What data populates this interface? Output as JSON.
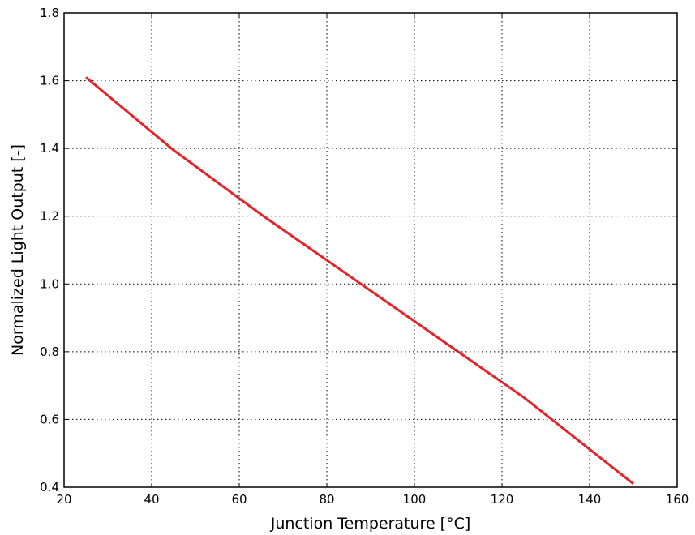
{
  "chart_data": {
    "type": "line",
    "title": "",
    "xlabel": "Junction Temperature [°C]",
    "ylabel": "Normalized Light Output [-]",
    "xlim": [
      20,
      160
    ],
    "ylim": [
      0.4,
      1.8
    ],
    "xticks": [
      20,
      40,
      60,
      80,
      100,
      120,
      140,
      160
    ],
    "yticks": [
      0.4,
      0.6,
      0.8,
      1.0,
      1.2,
      1.4,
      1.6,
      1.8
    ],
    "xtick_labels": [
      "20",
      "40",
      "60",
      "80",
      "100",
      "120",
      "140",
      "160"
    ],
    "ytick_labels": [
      "0.4",
      "0.6",
      "0.8",
      "1.0",
      "1.2",
      "1.4",
      "1.6",
      "1.8"
    ],
    "grid": true,
    "series": [
      {
        "color": "#e0262b",
        "x": [
          25,
          45,
          65,
          85,
          105,
          125,
          150
        ],
        "y": [
          1.61,
          1.395,
          1.205,
          1.025,
          0.845,
          0.665,
          0.41
        ]
      }
    ]
  }
}
